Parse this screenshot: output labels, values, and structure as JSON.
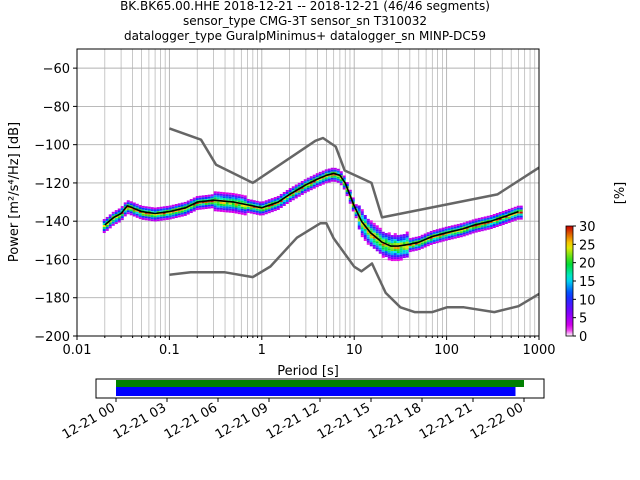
{
  "chart_data": {
    "type": "line",
    "title_lines": [
      "BK.BK65.00.HHE   2018-12-21 -- 2018-12-21  (46/46 segments)",
      "sensor_type CMG-3T sensor_sn T310032",
      "datalogger_type GuralpMinimus+ datalogger_sn MINP-DC59"
    ],
    "xlabel": "Period [s]",
    "ylabel": "Power [m²/s⁴/Hz] [dB]",
    "xscale": "log",
    "xlim": [
      0.01,
      1000
    ],
    "ylim": [
      -200,
      -50
    ],
    "x_ticks": [
      0.01,
      0.1,
      1,
      10,
      100,
      1000
    ],
    "x_tick_labels": [
      "0.01",
      "0.1",
      "1",
      "10",
      "100",
      "1000"
    ],
    "y_ticks": [
      -200,
      -180,
      -160,
      -140,
      -120,
      -100,
      -80,
      -60
    ],
    "y_tick_labels": [
      "−200",
      "−180",
      "−160",
      "−140",
      "−120",
      "−100",
      "−80",
      "−60"
    ],
    "grid": true,
    "series": [
      {
        "role": "high-noise-model",
        "color": "#666666",
        "x": [
          0.1,
          0.22,
          0.32,
          0.8,
          3.8,
          4.6,
          6.3,
          7.9,
          15.4,
          20,
          354.8,
          1000
        ],
        "y": [
          -91.5,
          -97.4,
          -110.5,
          -120,
          -98,
          -96.5,
          -101,
          -113.5,
          -120,
          -138,
          -126,
          -112
        ]
      },
      {
        "role": "low-noise-model",
        "color": "#666666",
        "x": [
          0.1,
          0.17,
          0.4,
          0.8,
          1.24,
          2.4,
          4.3,
          5,
          6,
          10,
          12,
          15.6,
          21.9,
          31.6,
          45,
          70,
          101,
          154,
          328,
          600,
          1000
        ],
        "y": [
          -168,
          -166.7,
          -166.7,
          -169.2,
          -163.7,
          -148.6,
          -141.1,
          -141.1,
          -149,
          -163.8,
          -166.2,
          -162.1,
          -177.5,
          -185,
          -187.5,
          -187.5,
          -185,
          -185,
          -187.5,
          -184.4,
          -178
        ]
      },
      {
        "role": "mode",
        "color": "#000000",
        "x": [
          0.02,
          0.025,
          0.03,
          0.035,
          0.04,
          0.05,
          0.07,
          0.1,
          0.15,
          0.2,
          0.3,
          0.5,
          0.8,
          1,
          1.5,
          2,
          3,
          4,
          5,
          6,
          7,
          8,
          10,
          12,
          15,
          20,
          25,
          30,
          40,
          50,
          70,
          100,
          150,
          200,
          300,
          400,
          600
        ],
        "y": [
          -142,
          -138,
          -136,
          -132,
          -133,
          -135,
          -136,
          -135,
          -133,
          -130,
          -129,
          -130,
          -132,
          -133,
          -130,
          -126,
          -121,
          -118,
          -116,
          -115,
          -116,
          -120,
          -132,
          -140,
          -146,
          -151,
          -153,
          -153,
          -152,
          -151,
          -148,
          -146,
          -144,
          -142,
          -140,
          -138,
          -135
        ]
      }
    ],
    "colorbar": {
      "label": "[%]",
      "range": [
        0,
        30
      ],
      "ticks": [
        0,
        5,
        10,
        15,
        20,
        25,
        30
      ]
    },
    "coverage": {
      "x_tick_labels": [
        "12-21 00",
        "12-21 03",
        "12-21 06",
        "12-21 09",
        "12-21 12",
        "12-21 15",
        "12-21 18",
        "12-21 21",
        "12-22 00"
      ],
      "data_start_hour": 0,
      "data_end_hour": 24,
      "psd_start_hour": 0,
      "psd_end_hour": 23.5,
      "data_color": "#008000",
      "psd_color": "#0000ff"
    }
  }
}
